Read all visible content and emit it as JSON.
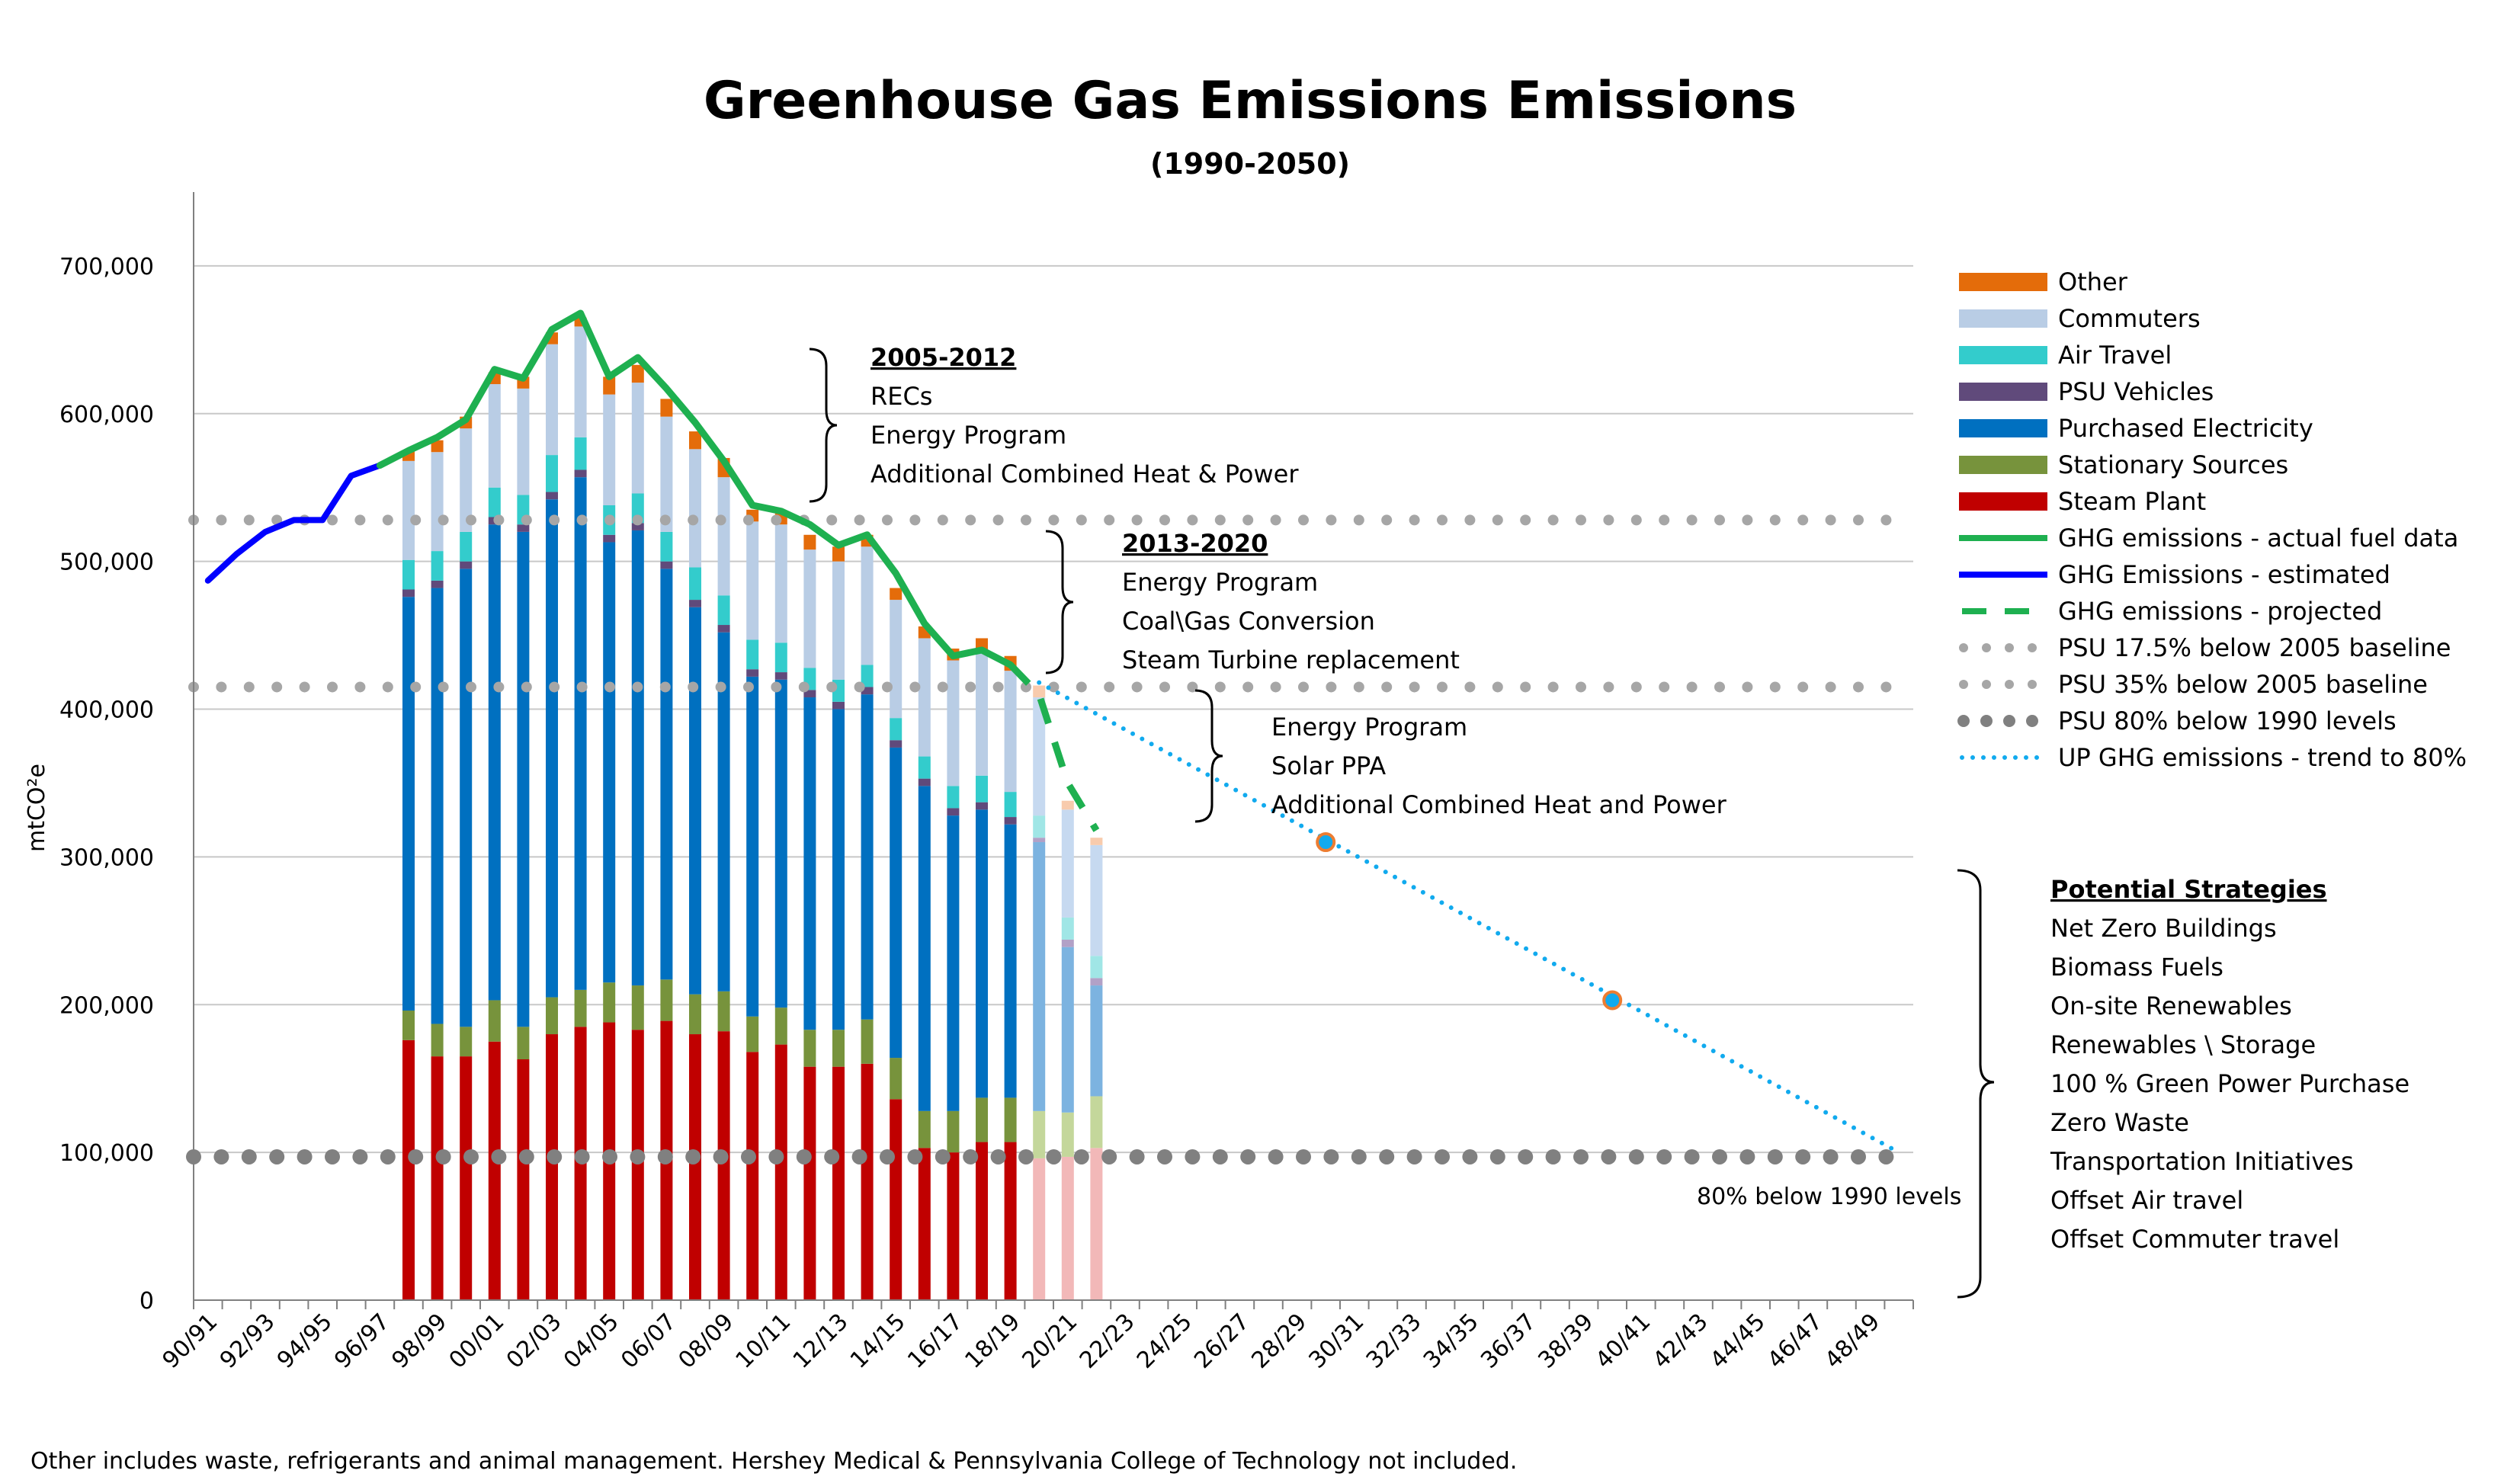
{
  "chart_data": {
    "type": "bar",
    "title": "Greenhouse Gas Emissions Emissions",
    "subtitle": "(1990-2050)",
    "ylabel": "mtCO²e",
    "xlabel": "",
    "ylim": [
      0,
      750000
    ],
    "yticks": [
      0,
      100000,
      200000,
      300000,
      400000,
      500000,
      600000,
      700000
    ],
    "ytick_labels": [
      "0",
      "100,000",
      "200,000",
      "300,000",
      "400,000",
      "500,000",
      "600,000",
      "700,000"
    ],
    "categories": [
      "90/91",
      "91/92",
      "92/93",
      "93/94",
      "94/95",
      "95/96",
      "96/97",
      "97/98",
      "98/99",
      "99/00",
      "00/01",
      "01/02",
      "02/03",
      "03/04",
      "04/05",
      "05/06",
      "06/07",
      "07/08",
      "08/09",
      "09/10",
      "10/11",
      "11/12",
      "12/13",
      "13/14",
      "14/15",
      "15/16",
      "16/17",
      "17/18",
      "18/19",
      "19/20",
      "20/21",
      "21/22",
      "22/23",
      "23/24",
      "24/25",
      "25/26",
      "26/27",
      "27/28",
      "28/29",
      "29/30",
      "30/31",
      "31/32",
      "32/33",
      "33/34",
      "34/35",
      "35/36",
      "36/37",
      "37/38",
      "38/39",
      "39/40",
      "40/41",
      "41/42",
      "42/43",
      "43/44",
      "44/45",
      "45/46",
      "46/47",
      "47/48",
      "48/49",
      "49/50"
    ],
    "tick_labels": [
      "90/91",
      "92/93",
      "94/95",
      "96/97",
      "98/99",
      "00/01",
      "02/03",
      "04/05",
      "06/07",
      "08/09",
      "10/11",
      "12/13",
      "14/15",
      "16/17",
      "18/19",
      "20/21",
      "22/23",
      "24/25",
      "26/27",
      "28/29",
      "30/31",
      "32/33",
      "34/35",
      "36/37",
      "38/39",
      "40/41",
      "42/43",
      "44/45",
      "46/47",
      "48/49"
    ],
    "bars": [
      {
        "cat": "97/98",
        "steam": 176000,
        "stationary": 20000,
        "electricity": 280000,
        "vehicles": 5000,
        "air": 20000,
        "commuters": 67000,
        "other": 7000
      },
      {
        "cat": "98/99",
        "steam": 165000,
        "stationary": 22000,
        "electricity": 295000,
        "vehicles": 5000,
        "air": 20000,
        "commuters": 67000,
        "other": 8000
      },
      {
        "cat": "99/00",
        "steam": 165000,
        "stationary": 20000,
        "electricity": 310000,
        "vehicles": 5000,
        "air": 20000,
        "commuters": 70000,
        "other": 8000
      },
      {
        "cat": "00/01",
        "steam": 175000,
        "stationary": 28000,
        "electricity": 322000,
        "vehicles": 5000,
        "air": 20000,
        "commuters": 70000,
        "other": 8000
      },
      {
        "cat": "01/02",
        "steam": 163000,
        "stationary": 22000,
        "electricity": 335000,
        "vehicles": 5000,
        "air": 20000,
        "commuters": 72000,
        "other": 8000
      },
      {
        "cat": "02/03",
        "steam": 180000,
        "stationary": 25000,
        "electricity": 337000,
        "vehicles": 5000,
        "air": 25000,
        "commuters": 75000,
        "other": 8000
      },
      {
        "cat": "03/04",
        "steam": 185000,
        "stationary": 25000,
        "electricity": 347000,
        "vehicles": 5000,
        "air": 22000,
        "commuters": 75000,
        "other": 6000
      },
      {
        "cat": "04/05",
        "steam": 188000,
        "stationary": 27000,
        "electricity": 298000,
        "vehicles": 5000,
        "air": 20000,
        "commuters": 75000,
        "other": 12000
      },
      {
        "cat": "05/06",
        "steam": 183000,
        "stationary": 30000,
        "electricity": 308000,
        "vehicles": 5000,
        "air": 20000,
        "commuters": 75000,
        "other": 12000
      },
      {
        "cat": "06/07",
        "steam": 189000,
        "stationary": 28000,
        "electricity": 278000,
        "vehicles": 5000,
        "air": 20000,
        "commuters": 78000,
        "other": 12000
      },
      {
        "cat": "07/08",
        "steam": 180000,
        "stationary": 27000,
        "electricity": 262000,
        "vehicles": 5000,
        "air": 22000,
        "commuters": 80000,
        "other": 12000
      },
      {
        "cat": "08/09",
        "steam": 182000,
        "stationary": 27000,
        "electricity": 243000,
        "vehicles": 5000,
        "air": 20000,
        "commuters": 80000,
        "other": 13000
      },
      {
        "cat": "09/10",
        "steam": 168000,
        "stationary": 24000,
        "electricity": 230000,
        "vehicles": 5000,
        "air": 20000,
        "commuters": 80000,
        "other": 8000
      },
      {
        "cat": "10/11",
        "steam": 173000,
        "stationary": 25000,
        "electricity": 222000,
        "vehicles": 5000,
        "air": 20000,
        "commuters": 80000,
        "other": 8000
      },
      {
        "cat": "11/12",
        "steam": 158000,
        "stationary": 25000,
        "electricity": 225000,
        "vehicles": 5000,
        "air": 15000,
        "commuters": 80000,
        "other": 10000
      },
      {
        "cat": "12/13",
        "steam": 158000,
        "stationary": 25000,
        "electricity": 217000,
        "vehicles": 5000,
        "air": 15000,
        "commuters": 80000,
        "other": 10000
      },
      {
        "cat": "13/14",
        "steam": 160000,
        "stationary": 30000,
        "electricity": 220000,
        "vehicles": 5000,
        "air": 15000,
        "commuters": 80000,
        "other": 8000
      },
      {
        "cat": "14/15",
        "steam": 136000,
        "stationary": 28000,
        "electricity": 210000,
        "vehicles": 5000,
        "air": 15000,
        "commuters": 80000,
        "other": 8000
      },
      {
        "cat": "15/16",
        "steam": 103000,
        "stationary": 25000,
        "electricity": 220000,
        "vehicles": 5000,
        "air": 15000,
        "commuters": 80000,
        "other": 8000
      },
      {
        "cat": "16/17",
        "steam": 100000,
        "stationary": 28000,
        "electricity": 200000,
        "vehicles": 5000,
        "air": 15000,
        "commuters": 85000,
        "other": 8000
      },
      {
        "cat": "17/18",
        "steam": 107000,
        "stationary": 30000,
        "electricity": 195000,
        "vehicles": 5000,
        "air": 18000,
        "commuters": 85000,
        "other": 8000
      },
      {
        "cat": "18/19",
        "steam": 107000,
        "stationary": 30000,
        "electricity": 185000,
        "vehicles": 5000,
        "air": 17000,
        "commuters": 82000,
        "other": 10000
      },
      {
        "cat": "19/20",
        "steam": 96000,
        "stationary": 32000,
        "electricity": 182000,
        "vehicles": 3000,
        "air": 15000,
        "commuters": 80000,
        "other": 8000,
        "projected": true
      },
      {
        "cat": "20/21",
        "steam": 97000,
        "stationary": 30000,
        "electricity": 112000,
        "vehicles": 5000,
        "air": 15000,
        "commuters": 73000,
        "other": 6000,
        "projected": true
      },
      {
        "cat": "21/22",
        "steam": 103000,
        "stationary": 35000,
        "electricity": 75000,
        "vehicles": 5000,
        "air": 15000,
        "commuters": 75000,
        "other": 5000,
        "projected": true
      }
    ],
    "stack_order": [
      "steam",
      "stationary",
      "electricity",
      "vehicles",
      "air",
      "commuters",
      "other"
    ],
    "colors": {
      "steam": "#c00000",
      "stationary": "#77933c",
      "electricity": "#0070c0",
      "vehicles": "#604a7b",
      "air": "#33cccc",
      "commuters": "#b9cde5",
      "other": "#e46c0a",
      "actual": "#1eb050",
      "estimated": "#0000ff",
      "projected": "#1eb050",
      "baseline": "#a6a6a6",
      "level80": "#808080",
      "trend": "#11aaee",
      "trendpoint": "#ed7d31"
    },
    "projected_colors": {
      "steam": "#f2b8b8",
      "stationary": "#c4d79b",
      "electricity": "#7cb3e0",
      "vehicles": "#b2a1c7",
      "air": "#a0e6e6",
      "commuters": "#c6d9f0",
      "other": "#f8cbad"
    },
    "series": [
      {
        "name": "GHG Emissions - estimated",
        "x": [
          "90/91",
          "91/92",
          "92/93",
          "93/94",
          "94/95",
          "95/96",
          "96/97"
        ],
        "values": [
          487000,
          505000,
          520000,
          528000,
          528000,
          558000,
          565000
        ]
      },
      {
        "name": "GHG  emissions - actual fuel data",
        "x": [
          "96/97",
          "97/98",
          "98/99",
          "99/00",
          "00/01",
          "01/02",
          "02/03",
          "03/04",
          "04/05",
          "05/06",
          "06/07",
          "07/08",
          "08/09",
          "09/10",
          "10/11",
          "11/12",
          "12/13",
          "13/14",
          "14/15",
          "15/16",
          "16/17",
          "17/18",
          "18/19"
        ],
        "values": [
          565000,
          575000,
          584000,
          596000,
          630000,
          624000,
          657000,
          668000,
          625000,
          638000,
          617000,
          594000,
          568000,
          538000,
          534000,
          525000,
          511000,
          518000,
          492000,
          458000,
          436000,
          440000,
          430000
        ]
      },
      {
        "name": "GHG emissions -  projected",
        "x": [
          "18/19",
          "19/20",
          "20/21",
          "21/22"
        ],
        "values": [
          430000,
          410000,
          350000,
          318000
        ]
      },
      {
        "name": "UP GHG emissions -  trend to 80%",
        "x": [
          "19/20",
          "49/50"
        ],
        "values": [
          418000,
          100000
        ]
      }
    ],
    "reference_lines": [
      {
        "name": "PSU 17.5% below 2005 baseline",
        "value": 528000
      },
      {
        "name": "PSU 35% below 2005 baseline",
        "value": 415000
      },
      {
        "name": "PSU 80% below 1990 levels",
        "value": 97000
      }
    ],
    "trend_points": [
      {
        "x": "29/30",
        "value": 310000
      },
      {
        "x": "39/40",
        "value": 203000
      }
    ],
    "legend": {
      "placement": "right",
      "entries": [
        {
          "label": "Other",
          "kind": "box",
          "color": "#e46c0a"
        },
        {
          "label": "Commuters",
          "kind": "box",
          "color": "#b9cde5"
        },
        {
          "label": "Air Travel",
          "kind": "box",
          "color": "#33cccc"
        },
        {
          "label": "PSU Vehicles",
          "kind": "box",
          "color": "#604a7b"
        },
        {
          "label": "Purchased Electricity",
          "kind": "box",
          "color": "#0070c0"
        },
        {
          "label": "Stationary Sources",
          "kind": "box",
          "color": "#77933c"
        },
        {
          "label": "Steam Plant",
          "kind": "box",
          "color": "#c00000"
        },
        {
          "label": "GHG  emissions - actual fuel data",
          "kind": "line",
          "color": "#1eb050"
        },
        {
          "label": "GHG Emissions - estimated",
          "kind": "line",
          "color": "#0000ff"
        },
        {
          "label": "GHG emissions -  projected",
          "kind": "dash",
          "color": "#1eb050"
        },
        {
          "label": "PSU 17.5% below 2005 baseline",
          "kind": "dots",
          "color": "#a6a6a6"
        },
        {
          "label": "PSU 35% below 2005 baseline",
          "kind": "dots",
          "color": "#a6a6a6"
        },
        {
          "label": "PSU 80% below 1990 levels",
          "kind": "bigdots",
          "color": "#808080"
        },
        {
          "label": "UP GHG emissions -  trend to 80%",
          "kind": "dotline",
          "color": "#11aaee"
        }
      ]
    },
    "annotations": {
      "a1": {
        "heading": "2005-2012",
        "lines": [
          "RECs",
          "Energy Program",
          "Additional Combined Heat & Power"
        ]
      },
      "a2": {
        "heading": "2013-2020",
        "lines": [
          "Energy Program",
          "Coal\\Gas Conversion",
          "Steam Turbine replacement"
        ]
      },
      "a3": {
        "heading": "",
        "lines": [
          "Energy Program",
          "Solar PPA",
          "Additional Combined Heat and Power"
        ]
      },
      "strategies": {
        "heading": "Potential Strategies",
        "lines": [
          "Net Zero Buildings",
          "Biomass Fuels",
          "On-site Renewables",
          "Renewables \\ Storage",
          "100 % Green Power Purchase",
          "Zero Waste",
          "Transportation Initiatives",
          "Offset Air travel",
          "Offset Commuter travel"
        ]
      },
      "level_label": "80% below 1990 levels"
    },
    "footnote": "Other includes waste, refrigerants and animal management. Hershey Medical & Pennsylvania College of Technology not included.",
    "grid": true
  }
}
